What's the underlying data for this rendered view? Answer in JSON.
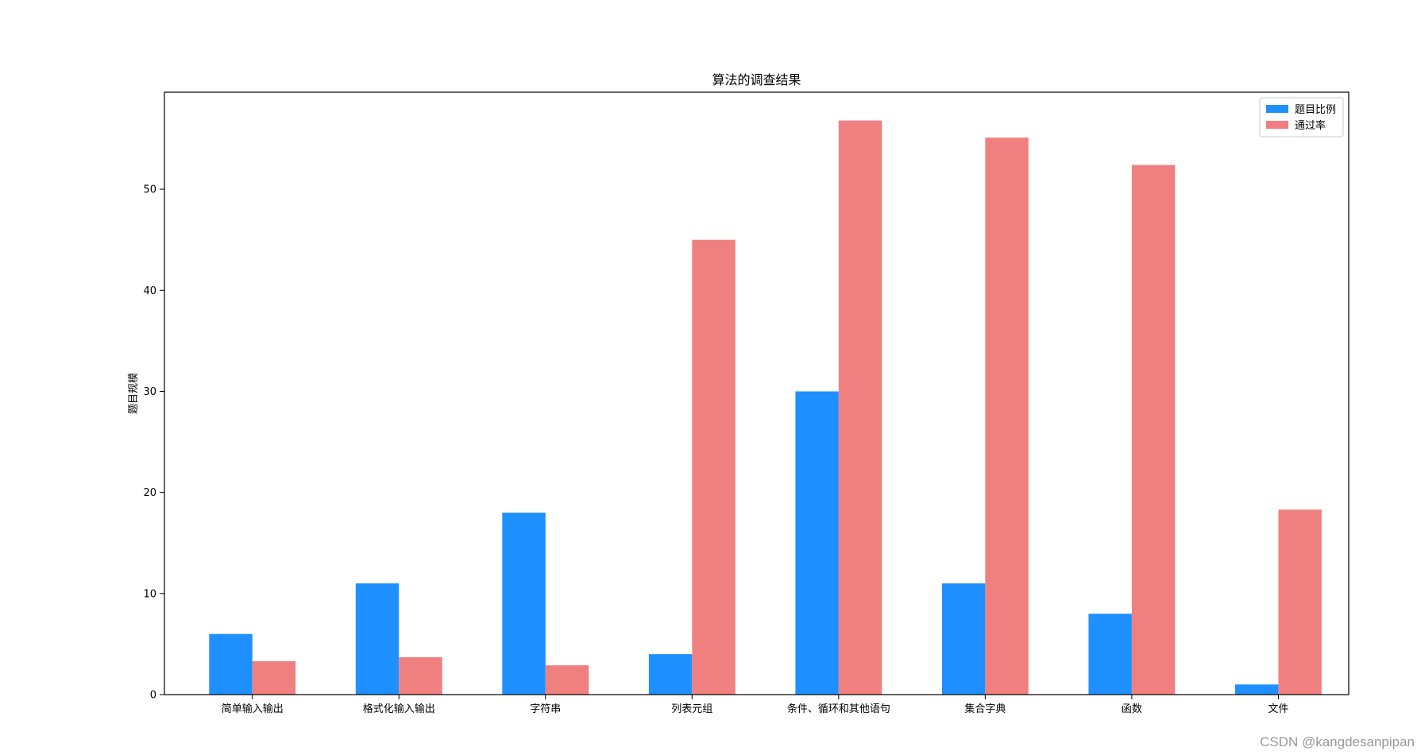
{
  "chart_data": {
    "type": "bar",
    "title": "算法的调查结果",
    "xlabel": "",
    "ylabel": "题目规模",
    "categories": [
      "简单输入输出",
      "格式化输入输出",
      "字符串",
      "列表元组",
      "条件、循环和其他语句",
      "集合字典",
      "函数",
      "文件"
    ],
    "series": [
      {
        "name": "题目比例",
        "color": "#1E90FF",
        "values": [
          6,
          11,
          18,
          4,
          30,
          11,
          8,
          1
        ]
      },
      {
        "name": "通过率",
        "color": "#F08080",
        "values": [
          3.3,
          3.7,
          2.9,
          45,
          56.8,
          55.1,
          52.4,
          18.3
        ]
      }
    ],
    "ylim": [
      0,
      59.6
    ],
    "yticks": [
      0,
      10,
      20,
      30,
      40,
      50
    ],
    "grid": false,
    "legend_position": "top-right"
  },
  "watermark": "CSDN @kangdesanpipan"
}
